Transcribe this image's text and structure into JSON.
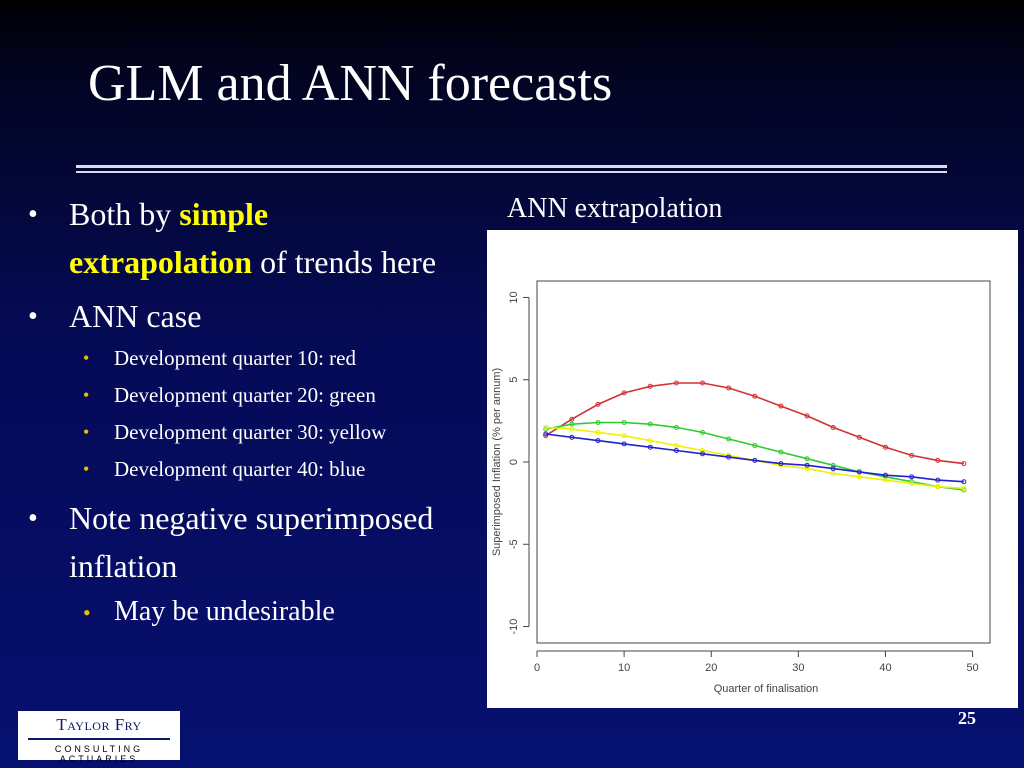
{
  "slide": {
    "title": "GLM and ANN forecasts",
    "page_number": "25"
  },
  "bullets": {
    "b1_prefix": "Both by ",
    "b1_highlight1": "simple",
    "b1_highlight2": "extrapolation",
    "b1_suffix": " of trends here",
    "b2": "ANN case",
    "sub": [
      "Development quarter 10: red",
      "Development quarter 20: green",
      "Development quarter 30: yellow",
      "Development quarter 40: blue"
    ],
    "b3": "Note negative superimposed inflation",
    "b3_sub": "May be undesirable"
  },
  "chart_caption": "ANN extrapolation",
  "logo": {
    "name": "Taylor Fry",
    "tagline": "CONSULTING ACTUARIES"
  },
  "chart_data": {
    "type": "line",
    "xlabel": "Quarter of finalisation",
    "ylabel": "Superimposed Inflation (% per annum)",
    "xlim": [
      0,
      52
    ],
    "ylim": [
      -11,
      11
    ],
    "xticks": [
      0,
      10,
      20,
      30,
      40,
      50
    ],
    "yticks": [
      -10,
      -5,
      0,
      5,
      10
    ],
    "grid": false,
    "legend": "none",
    "x": [
      1,
      4,
      7,
      10,
      13,
      16,
      19,
      22,
      25,
      28,
      31,
      34,
      37,
      40,
      43,
      46,
      49
    ],
    "series": [
      {
        "color": "#d23232",
        "values": [
          1.6,
          2.6,
          3.5,
          4.2,
          4.6,
          4.8,
          4.8,
          4.5,
          4.0,
          3.4,
          2.8,
          2.1,
          1.5,
          0.9,
          0.4,
          0.1,
          -0.1
        ]
      },
      {
        "color": "#2ecc2e",
        "values": [
          2.0,
          2.3,
          2.4,
          2.4,
          2.3,
          2.1,
          1.8,
          1.4,
          1.0,
          0.6,
          0.2,
          -0.2,
          -0.6,
          -0.9,
          -1.2,
          -1.5,
          -1.7
        ]
      },
      {
        "color": "#f0f000",
        "values": [
          2.1,
          2.0,
          1.8,
          1.6,
          1.3,
          1.0,
          0.7,
          0.4,
          0.1,
          -0.2,
          -0.4,
          -0.7,
          -0.9,
          -1.1,
          -1.3,
          -1.5,
          -1.6
        ]
      },
      {
        "color": "#2222cc",
        "values": [
          1.7,
          1.5,
          1.3,
          1.1,
          0.9,
          0.7,
          0.5,
          0.3,
          0.1,
          -0.1,
          -0.2,
          -0.4,
          -0.6,
          -0.8,
          -0.9,
          -1.1,
          -1.2
        ]
      }
    ]
  }
}
